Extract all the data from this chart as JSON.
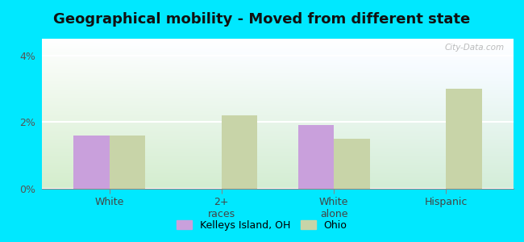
{
  "title": "Geographical mobility - Moved from different state",
  "categories": [
    "White",
    "2+\nraces",
    "White\nalone",
    "Hispanic"
  ],
  "kelleys_values": [
    1.6,
    0.0,
    1.9,
    0.0
  ],
  "ohio_values": [
    1.6,
    2.2,
    1.5,
    3.0
  ],
  "kelleys_color": "#c9a0dc",
  "ohio_color": "#c8d4a8",
  "ylim": [
    0,
    4.5
  ],
  "yticks": [
    0,
    2,
    4
  ],
  "ytick_labels": [
    "0%",
    "2%",
    "4%"
  ],
  "outer_bg": "#00e8ff",
  "bar_width": 0.32,
  "legend_kelleys": "Kelleys Island, OH",
  "legend_ohio": "Ohio",
  "title_fontsize": 13,
  "watermark": "City-Data.com"
}
